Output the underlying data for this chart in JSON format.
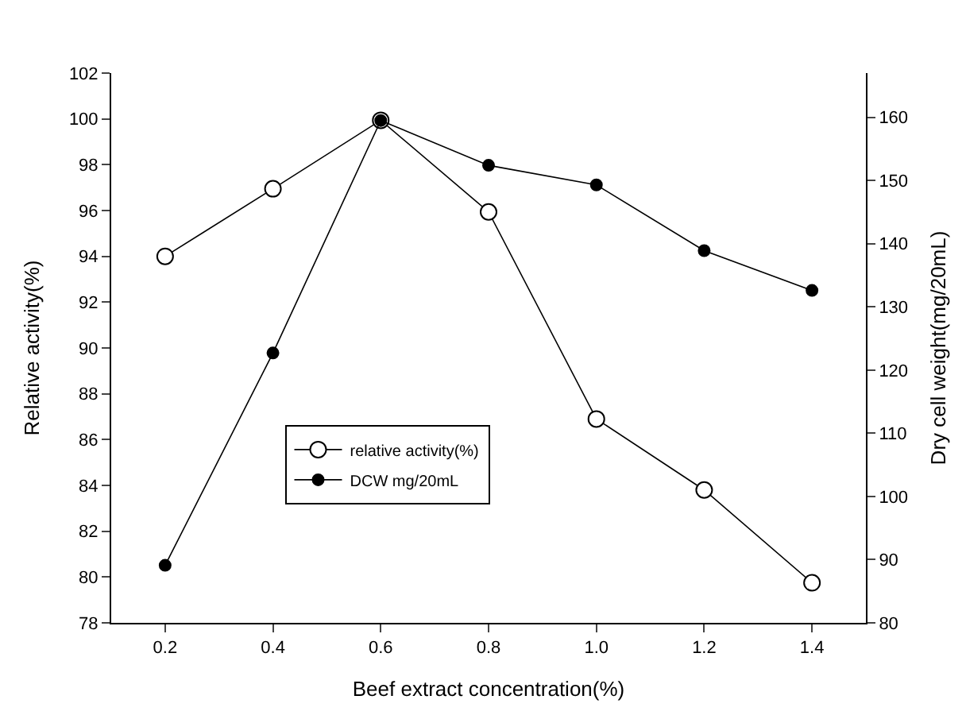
{
  "chart_data": {
    "type": "line",
    "xlabel": "Beef extract concentration(%)",
    "ylabel": "Relative activity(%)",
    "y2label": "Dry cell weight(mg/20mL)",
    "x": [
      0.2,
      0.4,
      0.6,
      0.8,
      1.0,
      1.2,
      1.4
    ],
    "series": [
      {
        "name": "relative activity(%)",
        "color": "#000000",
        "marker": "circle-open",
        "values": [
          94.0,
          96.95,
          99.94,
          95.94,
          86.9,
          83.8,
          79.75
        ]
      },
      {
        "name": "DCW mg/20mL",
        "color": "#000000",
        "marker": "circle",
        "axis": "y2",
        "values": [
          89.1,
          122.7,
          159.5,
          152.4,
          149.3,
          138.9,
          132.6
        ]
      }
    ],
    "xlim": [
      0.1,
      1.5
    ],
    "xticks": [
      {
        "value": 0.2,
        "label": "0.2"
      },
      {
        "value": 0.4,
        "label": "0.4"
      },
      {
        "value": 0.6,
        "label": "0.6"
      },
      {
        "value": 0.8,
        "label": "0.8"
      },
      {
        "value": 1.0,
        "label": "1.0"
      },
      {
        "value": 1.2,
        "label": "1.2"
      },
      {
        "value": 1.4,
        "label": "1.4"
      }
    ],
    "ylim": [
      78,
      102
    ],
    "yticks": [
      78,
      80,
      82,
      84,
      86,
      88,
      90,
      92,
      94,
      96,
      98,
      100,
      102
    ],
    "y2lim": [
      80,
      167
    ],
    "y2ticks": [
      80,
      90,
      100,
      110,
      120,
      130,
      140,
      150,
      160
    ],
    "legend": "bottom left",
    "line_style": "solid"
  }
}
